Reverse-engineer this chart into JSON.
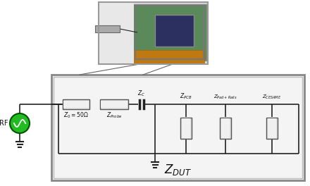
{
  "wire_color": "#222222",
  "resistor_fill": "#d8d8d8",
  "resistor_edge": "#555555",
  "resistor_fill_h": "#cccccc",
  "source_color": "#22bb22",
  "source_edge": "#005500",
  "label_color": "#111111",
  "dut_box_fill": "#f2f2f2",
  "dut_box_edge": "#777777",
  "photo_frame_fill": "#e8e8e8",
  "photo_pcb_green": "#4a8a4a",
  "photo_pcb_bg": "#c8c8c8",
  "photo_chip": "#333355",
  "photo_orange": "#c07818",
  "photo_probe_fill": "#bbbbbb",
  "white": "#ffffff",
  "line_connecting": "#555555"
}
